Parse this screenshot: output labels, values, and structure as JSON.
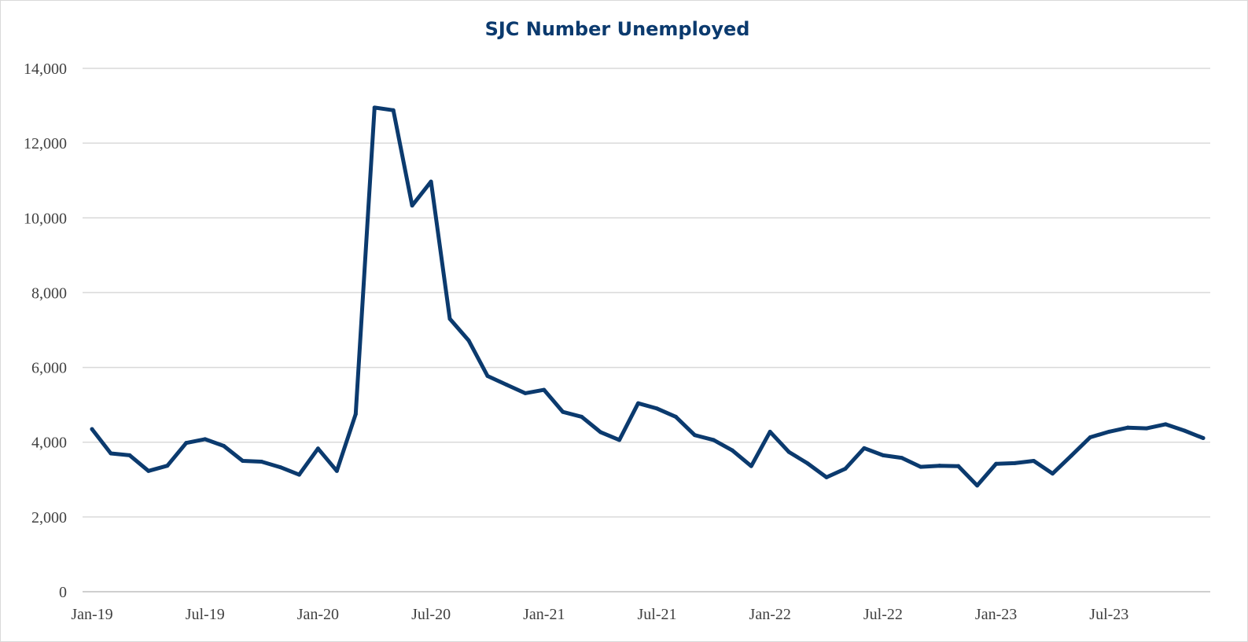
{
  "chart_data": {
    "type": "line",
    "title": "SJC Number Unemployed",
    "xlabel": "",
    "ylabel": "",
    "ylim": [
      0,
      14000
    ],
    "y_ticks": [
      0,
      2000,
      4000,
      6000,
      8000,
      10000,
      12000,
      14000
    ],
    "y_tick_labels": [
      "0",
      "2,000",
      "4,000",
      "6,000",
      "8,000",
      "10,000",
      "12,000",
      "14,000"
    ],
    "x_tick_labels": [
      "Jan-19",
      "Jul-19",
      "Jan-20",
      "Jul-20",
      "Jan-21",
      "Jul-21",
      "Jan-22",
      "Jul-22",
      "Jan-23",
      "Jul-23"
    ],
    "grid": true,
    "legend": "none",
    "line_color": "#0b3a6e",
    "series": [
      {
        "x": [
          "Jan-19",
          "Feb-19",
          "Mar-19",
          "Apr-19",
          "May-19",
          "Jun-19",
          "Jul-19",
          "Aug-19",
          "Sep-19",
          "Oct-19",
          "Nov-19",
          "Dec-19",
          "Jan-20",
          "Feb-20",
          "Mar-20",
          "Apr-20",
          "May-20",
          "Jun-20",
          "Jul-20",
          "Aug-20",
          "Sep-20",
          "Oct-20",
          "Nov-20",
          "Dec-20",
          "Jan-21",
          "Feb-21",
          "Mar-21",
          "Apr-21",
          "May-21",
          "Jun-21",
          "Jul-21",
          "Aug-21",
          "Sep-21",
          "Oct-21",
          "Nov-21",
          "Dec-21",
          "Jan-22",
          "Feb-22",
          "Mar-22",
          "Apr-22",
          "May-22",
          "Jun-22",
          "Jul-22",
          "Aug-22",
          "Sep-22",
          "Oct-22",
          "Nov-22",
          "Dec-22",
          "Jan-23",
          "Feb-23",
          "Mar-23",
          "Apr-23",
          "May-23",
          "Jun-23",
          "Jul-23",
          "Aug-23",
          "Sep-23",
          "Oct-23",
          "Nov-23",
          "Dec-23"
        ],
        "values": [
          4350,
          3700,
          3650,
          3230,
          3370,
          3980,
          4080,
          3900,
          3500,
          3480,
          3330,
          3130,
          3830,
          3230,
          4750,
          12950,
          12880,
          10330,
          10970,
          7300,
          6720,
          5770,
          5540,
          5310,
          5400,
          4810,
          4680,
          4270,
          4060,
          5040,
          4900,
          4680,
          4190,
          4060,
          3780,
          3360,
          4280,
          3740,
          3430,
          3060,
          3290,
          3840,
          3650,
          3580,
          3340,
          3370,
          3360,
          2840,
          3420,
          3440,
          3500,
          3160,
          3640,
          4130,
          4280,
          4390,
          4370,
          4480,
          4310,
          4110
        ]
      }
    ]
  }
}
